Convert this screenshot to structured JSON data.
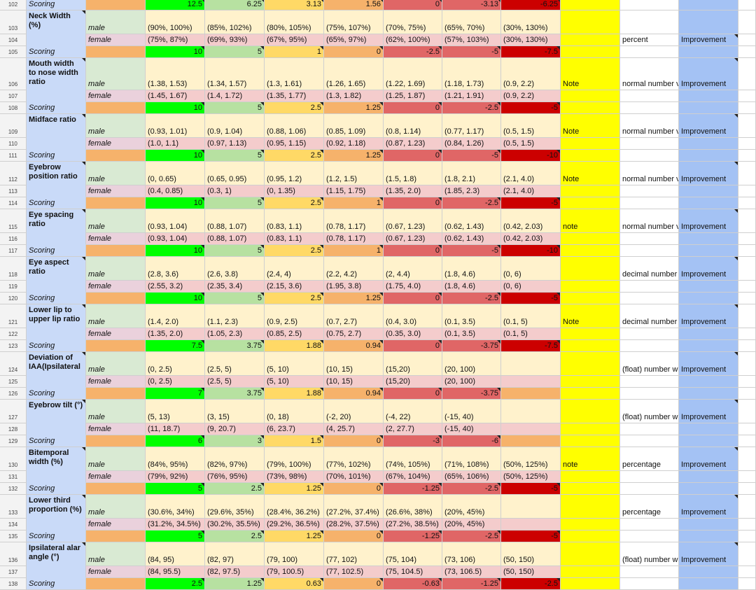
{
  "colors": {
    "score": [
      "#00ff00",
      "#b7e1a1",
      "#ffd966",
      "#f6b26b",
      "#e06666",
      "#e06666",
      "#cc0000"
    ],
    "male_row": "#d9ead3",
    "female_row": "#ead1dc",
    "score_row": "#f6b26b",
    "range_male": "#fff2cc",
    "range_female": "#f4cccc",
    "label_bg": "#c9daf8",
    "note_column": "#ffff00",
    "improvement_column": "#a4c2f4"
  },
  "rows": [
    {
      "n": "102",
      "type": "score",
      "label": "Scoring",
      "values": [
        "12.5",
        "6.25",
        "3.13",
        "1.56",
        "0",
        "-3.13",
        "-6.25"
      ],
      "noteMark": false
    },
    {
      "n": "103",
      "type": "male",
      "label": "Neck Width (%)",
      "labelSpan": 2,
      "values": [
        "(90%, 100%)",
        "(85%, 102%)",
        "(80%, 105%)",
        "(75%, 107%)",
        "(70%, 75%)",
        "(65%, 70%)",
        "(30%, 130%)"
      ]
    },
    {
      "n": "104",
      "type": "female",
      "values": [
        "(75%, 87%)",
        "(69%, 93%)",
        "(67%, 95%)",
        "(65%, 97%)",
        "(62%, 100%)",
        "(57%, 103%)",
        "(30%, 130%)"
      ],
      "unit": "percent",
      "improve": "Improvement"
    },
    {
      "n": "105",
      "type": "score",
      "label": "Scoring",
      "values": [
        "10",
        "5",
        "1",
        "0",
        "-2.5",
        "-5",
        "-7.5"
      ]
    },
    {
      "n": "106",
      "type": "male",
      "label": "Mouth width to nose width ratio",
      "labelSpan": 2,
      "tall": true,
      "values": [
        "(1.38, 1.53)",
        "(1.34, 1.57)",
        "(1.3, 1.61)",
        "(1.26, 1.65)",
        "(1.22, 1.69)",
        "(1.18, 1.73)",
        "(0.9, 2.2)"
      ],
      "note": "Note",
      "unit": "normal number v",
      "improve": "Improvement"
    },
    {
      "n": "107",
      "type": "female",
      "values": [
        "(1.45, 1.67)",
        "(1.4, 1.72)",
        "(1.35, 1.77)",
        "(1.3, 1.82)",
        "(1.25, 1.87)",
        "(1.21, 1.91)",
        "(0.9, 2.2)"
      ]
    },
    {
      "n": "108",
      "type": "score",
      "label": "Scoring",
      "values": [
        "10",
        "5",
        "2.5",
        "1.25",
        "0",
        "-2.5",
        "-5"
      ]
    },
    {
      "n": "109",
      "type": "male",
      "label": "Midface ratio",
      "labelSpan": 2,
      "values": [
        "(0.93, 1.01)",
        "(0.9, 1.04)",
        "(0.88, 1.06)",
        "(0.85, 1.09)",
        "(0.8, 1.14)",
        "(0.77, 1.17)",
        "(0.5, 1.5)"
      ],
      "note": "Note",
      "unit": "normal number v",
      "improve": "Improvement"
    },
    {
      "n": "110",
      "type": "female",
      "values": [
        "(1.0, 1.1)",
        "(0.97, 1.13)",
        "(0.95, 1.15)",
        "(0.92, 1.18)",
        "(0.87, 1.23)",
        "(0.84, 1.26)",
        "(0.5, 1.5)"
      ]
    },
    {
      "n": "111",
      "type": "score",
      "label": "Scoring",
      "values": [
        "10",
        "5",
        "2.5",
        "1.25",
        "0",
        "-5",
        "-10"
      ]
    },
    {
      "n": "112",
      "type": "male",
      "label": "Eyebrow position ratio",
      "labelSpan": 2,
      "values": [
        "(0, 0.65)",
        "(0.65, 0.95)",
        "(0.95, 1.2)",
        "(1.2, 1.5)",
        "(1.5, 1.8)",
        "(1.8, 2.1)",
        "(2.1, 4.0)"
      ],
      "note": "Note",
      "unit": "normal number v",
      "improve": "Improvement"
    },
    {
      "n": "113",
      "type": "female",
      "values": [
        "(0.4, 0.85)",
        "(0.3, 1)",
        "(0, 1.35)",
        "(1.15, 1.75)",
        "(1.35, 2.0)",
        "(1.85, 2.3)",
        "(2.1, 4.0)"
      ]
    },
    {
      "n": "114",
      "type": "score",
      "label": "Scoring",
      "values": [
        "10",
        "5",
        "2.5",
        "1",
        "0",
        "-2.5",
        "-5"
      ]
    },
    {
      "n": "115",
      "type": "male",
      "label": "Eye spacing ratio",
      "labelSpan": 2,
      "values": [
        "(0.93, 1.04)",
        "(0.88, 1.07)",
        "(0.83, 1.1)",
        "(0.78, 1.17)",
        "(0.67, 1.23)",
        "(0.62, 1.43)",
        "(0.42, 2.03)"
      ],
      "note": "note",
      "unit": "normal number v",
      "improve": "Improvement"
    },
    {
      "n": "116",
      "type": "female",
      "values": [
        "(0.93, 1.04)",
        "(0.88, 1.07)",
        "(0.83, 1.1)",
        "(0.78, 1.17)",
        "(0.67, 1.23)",
        "(0.62, 1.43)",
        "(0.42, 2.03)"
      ]
    },
    {
      "n": "117",
      "type": "score",
      "label": "Scoring",
      "values": [
        "10",
        "5",
        "2.5",
        "1",
        "0",
        "-5",
        "-10"
      ]
    },
    {
      "n": "118",
      "type": "male",
      "label": "Eye aspect ratio",
      "labelSpan": 2,
      "values": [
        "(2.8, 3.6)",
        "(2.6, 3.8)",
        "(2.4, 4)",
        "(2.2, 4.2)",
        "(2, 4.4)",
        "(1.8, 4.6)",
        "(0, 6)"
      ],
      "unit": "decimal number",
      "improve": "Improvement"
    },
    {
      "n": "119",
      "type": "female",
      "values": [
        "(2.55, 3.2)",
        "(2.35, 3.4)",
        "(2.15, 3.6)",
        "(1.95, 3.8)",
        "(1.75, 4.0)",
        "(1.8, 4.6)",
        "(0, 6)"
      ]
    },
    {
      "n": "120",
      "type": "score",
      "label": "Scoring",
      "values": [
        "10",
        "5",
        "2.5",
        "1.25",
        "0",
        "-2.5",
        "-5"
      ]
    },
    {
      "n": "121",
      "type": "male",
      "label": "Lower lip to upper lip ratio",
      "labelSpan": 2,
      "values": [
        "(1.4, 2.0)",
        "(1.1, 2.3)",
        "(0.9, 2.5)",
        "(0.7, 2.7)",
        "(0.4, 3.0)",
        "(0.1, 3.5)",
        "(0.1, 5)"
      ],
      "note": "Note",
      "unit": "decimal number",
      "improve": "Improvement"
    },
    {
      "n": "122",
      "type": "female",
      "values": [
        "(1.35, 2.0)",
        "(1.05, 2.3)",
        "(0.85, 2.5)",
        "(0.75, 2.7)",
        "(0.35, 3.0)",
        "(0.1, 3.5)",
        "(0.1, 5)"
      ]
    },
    {
      "n": "123",
      "type": "score",
      "label": "Scoring",
      "values": [
        "7.5",
        "3.75",
        "1.88",
        "0.94",
        "0",
        "-3.75",
        "-7.5"
      ]
    },
    {
      "n": "124",
      "type": "male",
      "label": "Deviation of IAA(Ipsilateral",
      "labelSpan": 2,
      "values": [
        "(0, 2.5)",
        "(2.5, 5)",
        "(5, 10)",
        "(10, 15)",
        "(15,20)",
        "(20, 100)",
        ""
      ],
      "unit": "(float) number w",
      "improve": "Improvement"
    },
    {
      "n": "125",
      "type": "female",
      "values": [
        "(0, 2.5)",
        "(2.5, 5)",
        "(5, 10)",
        "(10, 15)",
        "(15,20)",
        "(20, 100)",
        ""
      ]
    },
    {
      "n": "126",
      "type": "score",
      "label": "Scoring",
      "values": [
        "7",
        "3.75",
        "1.88",
        "0.94",
        "0",
        "-3.75",
        ""
      ]
    },
    {
      "n": "127",
      "type": "male",
      "label": "Eyebrow tilt (°)",
      "labelSpan": 2,
      "values": [
        "(5, 13)",
        "(3, 15)",
        "(0, 18)",
        "(-2, 20)",
        "(-4, 22)",
        "(-15, 40)",
        ""
      ],
      "unit": "(float) number w",
      "improve": "Improvement"
    },
    {
      "n": "128",
      "type": "female",
      "values": [
        "(11, 18.7)",
        "(9, 20.7)",
        "(6, 23.7)",
        "(4, 25.7)",
        "(2, 27.7)",
        "(-15, 40)",
        ""
      ]
    },
    {
      "n": "129",
      "type": "score",
      "label": "Scoring",
      "values": [
        "6",
        "3",
        "1.5",
        "0",
        "-3",
        "-6",
        ""
      ]
    },
    {
      "n": "130",
      "type": "male",
      "label": "Bitemporal width (%)",
      "labelSpan": 2,
      "values": [
        "(84%, 95%)",
        "(82%, 97%)",
        "(79%, 100%)",
        "(77%, 102%)",
        "(74%, 105%)",
        "(71%, 108%)",
        "(50%, 125%)"
      ],
      "note": "note",
      "unit": "percentage",
      "improve": "Improvement"
    },
    {
      "n": "131",
      "type": "female",
      "values": [
        "(79%, 92%)",
        "(76%, 95%)",
        "(73%, 98%)",
        "(70%, 101%)",
        "(67%, 104%)",
        "(65%, 106%)",
        "(50%, 125%)"
      ]
    },
    {
      "n": "132",
      "type": "score",
      "label": "Scoring",
      "values": [
        "5",
        "2.5",
        "1.25",
        "0",
        "-1.25",
        "-2.5",
        "-5"
      ]
    },
    {
      "n": "133",
      "type": "male",
      "label": "Lower third proportion (%)",
      "labelSpan": 2,
      "values": [
        "(30.6%, 34%)",
        "(29.6%, 35%)",
        "(28.4%, 36.2%)",
        "(27.2%, 37.4%)",
        "(26.6%, 38%)",
        "(20%, 45%)",
        ""
      ],
      "unit": "percentage",
      "improve": "Improvement"
    },
    {
      "n": "134",
      "type": "female",
      "values": [
        "(31.2%, 34.5%)",
        "(30.2%, 35.5%)",
        "(29.2%, 36.5%)",
        "(28.2%, 37.5%)",
        "(27.2%, 38.5%)",
        "(20%, 45%)",
        ""
      ]
    },
    {
      "n": "135",
      "type": "score",
      "label": "Scoring",
      "values": [
        "5",
        "2.5",
        "1.25",
        "0",
        "-1.25",
        "-2.5",
        "-5"
      ]
    },
    {
      "n": "136",
      "type": "male",
      "label": "Ipsilateral alar angle (°)",
      "labelSpan": 2,
      "values": [
        "(84, 95)",
        "(82, 97)",
        "(79, 100)",
        "(77, 102)",
        "(75, 104)",
        "(73, 106)",
        "(50, 150)"
      ],
      "unit": "(float) number w",
      "improve": "Improvement"
    },
    {
      "n": "137",
      "type": "female",
      "values": [
        "(84, 95.5)",
        "(82, 97.5)",
        "(79, 100.5)",
        "(77, 102.5)",
        "(75, 104.5)",
        "(73, 106.5)",
        "(50, 150)"
      ]
    },
    {
      "n": "138",
      "type": "score",
      "label": "Scoring",
      "values": [
        "2.5",
        "1.25",
        "0.63",
        "0",
        "-0.63",
        "-1.25",
        "-2.5"
      ]
    }
  ],
  "sexLabels": {
    "male": "male",
    "female": "female"
  }
}
